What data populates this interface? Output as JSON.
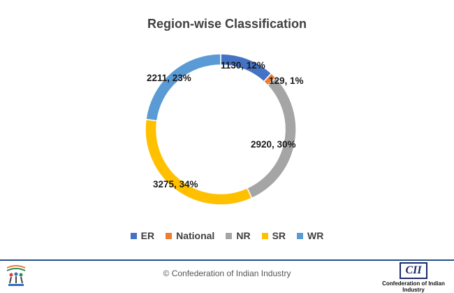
{
  "title": "Region-wise Classification",
  "legend": [
    {
      "name": "ER",
      "color": "#4472c4"
    },
    {
      "name": "National",
      "color": "#ed7d31"
    },
    {
      "name": "NR",
      "color": "#a5a5a5"
    },
    {
      "name": "SR",
      "color": "#ffc000"
    },
    {
      "name": "WR",
      "color": "#5b9bd5"
    }
  ],
  "labels": {
    "er": "1130, 12%",
    "national": "129, 1%",
    "nr": "2920, 30%",
    "sr": "3275, 34%",
    "wr": "2211, 23%"
  },
  "footer": {
    "copyright": "© Confederation of Indian Industry",
    "logo_mark": "CII",
    "logo_text": "Confederation of Indian Industry"
  },
  "chart_data": {
    "type": "pie",
    "subtype": "doughnut",
    "title": "Region-wise Classification",
    "categories": [
      "ER",
      "National",
      "NR",
      "SR",
      "WR"
    ],
    "values": [
      1130,
      129,
      2920,
      3275,
      2211
    ],
    "percentages": [
      12,
      1,
      30,
      34,
      23
    ],
    "colors": [
      "#4472c4",
      "#ed7d31",
      "#a5a5a5",
      "#ffc000",
      "#5b9bd5"
    ],
    "legend_position": "bottom"
  }
}
